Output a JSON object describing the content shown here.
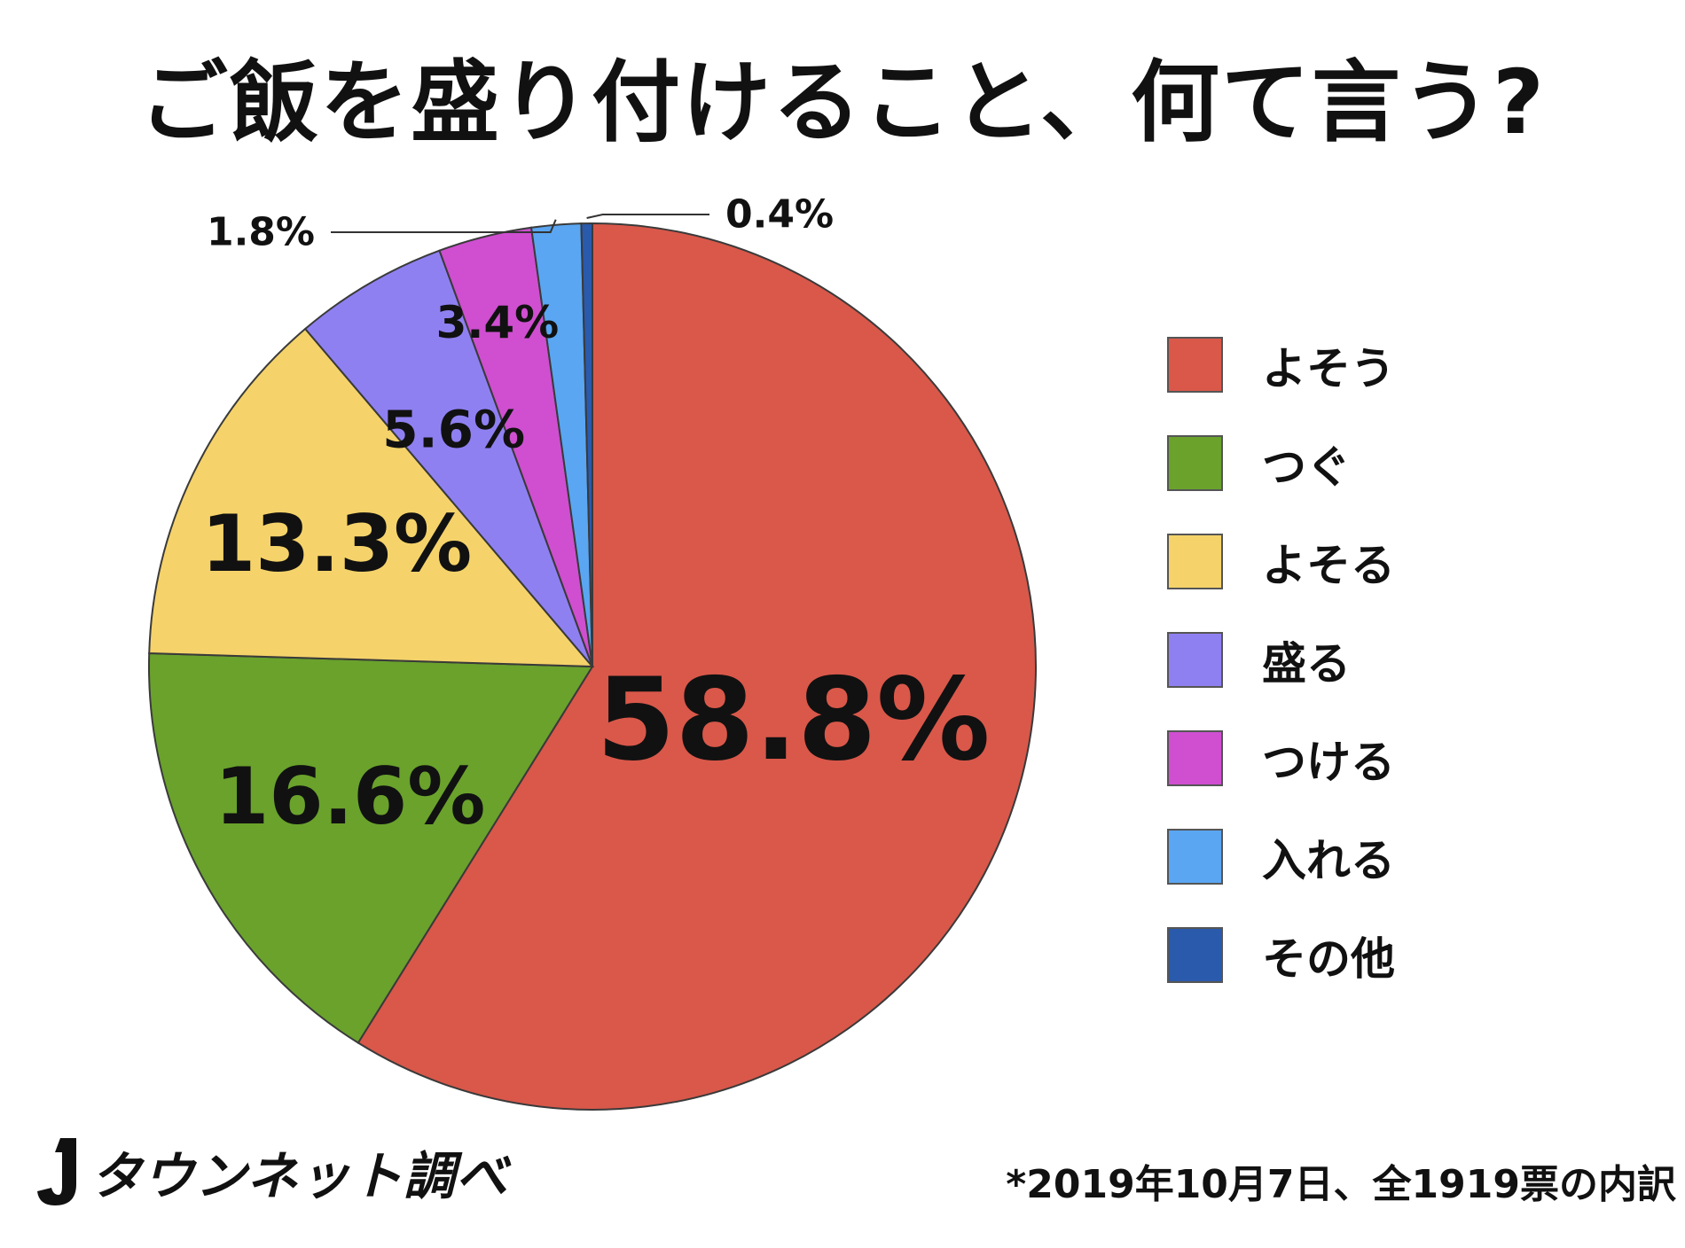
{
  "chart_data": {
    "type": "pie",
    "title": "ご飯を盛り付けること、何て言う?",
    "unit": "%",
    "slices": [
      {
        "label": "よそう",
        "value": 58.8,
        "value_label": "58.8%",
        "color": "#d9584a"
      },
      {
        "label": "つぐ",
        "value": 16.6,
        "value_label": "16.6%",
        "color": "#6aa22c"
      },
      {
        "label": "よそる",
        "value": 13.3,
        "value_label": "13.3%",
        "color": "#f5d36a"
      },
      {
        "label": "盛る",
        "value": 5.6,
        "value_label": "5.6%",
        "color": "#8f80f2"
      },
      {
        "label": "つける",
        "value": 3.4,
        "value_label": "3.4%",
        "color": "#cf4fd0"
      },
      {
        "label": "入れる",
        "value": 1.8,
        "value_label": "1.8%",
        "color": "#5aa6f2"
      },
      {
        "label": "その他",
        "value": 0.4,
        "value_label": "0.4%",
        "color": "#2a5aac"
      }
    ],
    "legend_position": "right",
    "start_angle": "12 o'clock",
    "direction": "clockwise"
  },
  "source": "タウンネット調べ",
  "footnote": "*2019年10月7日、全1919票の内訳"
}
